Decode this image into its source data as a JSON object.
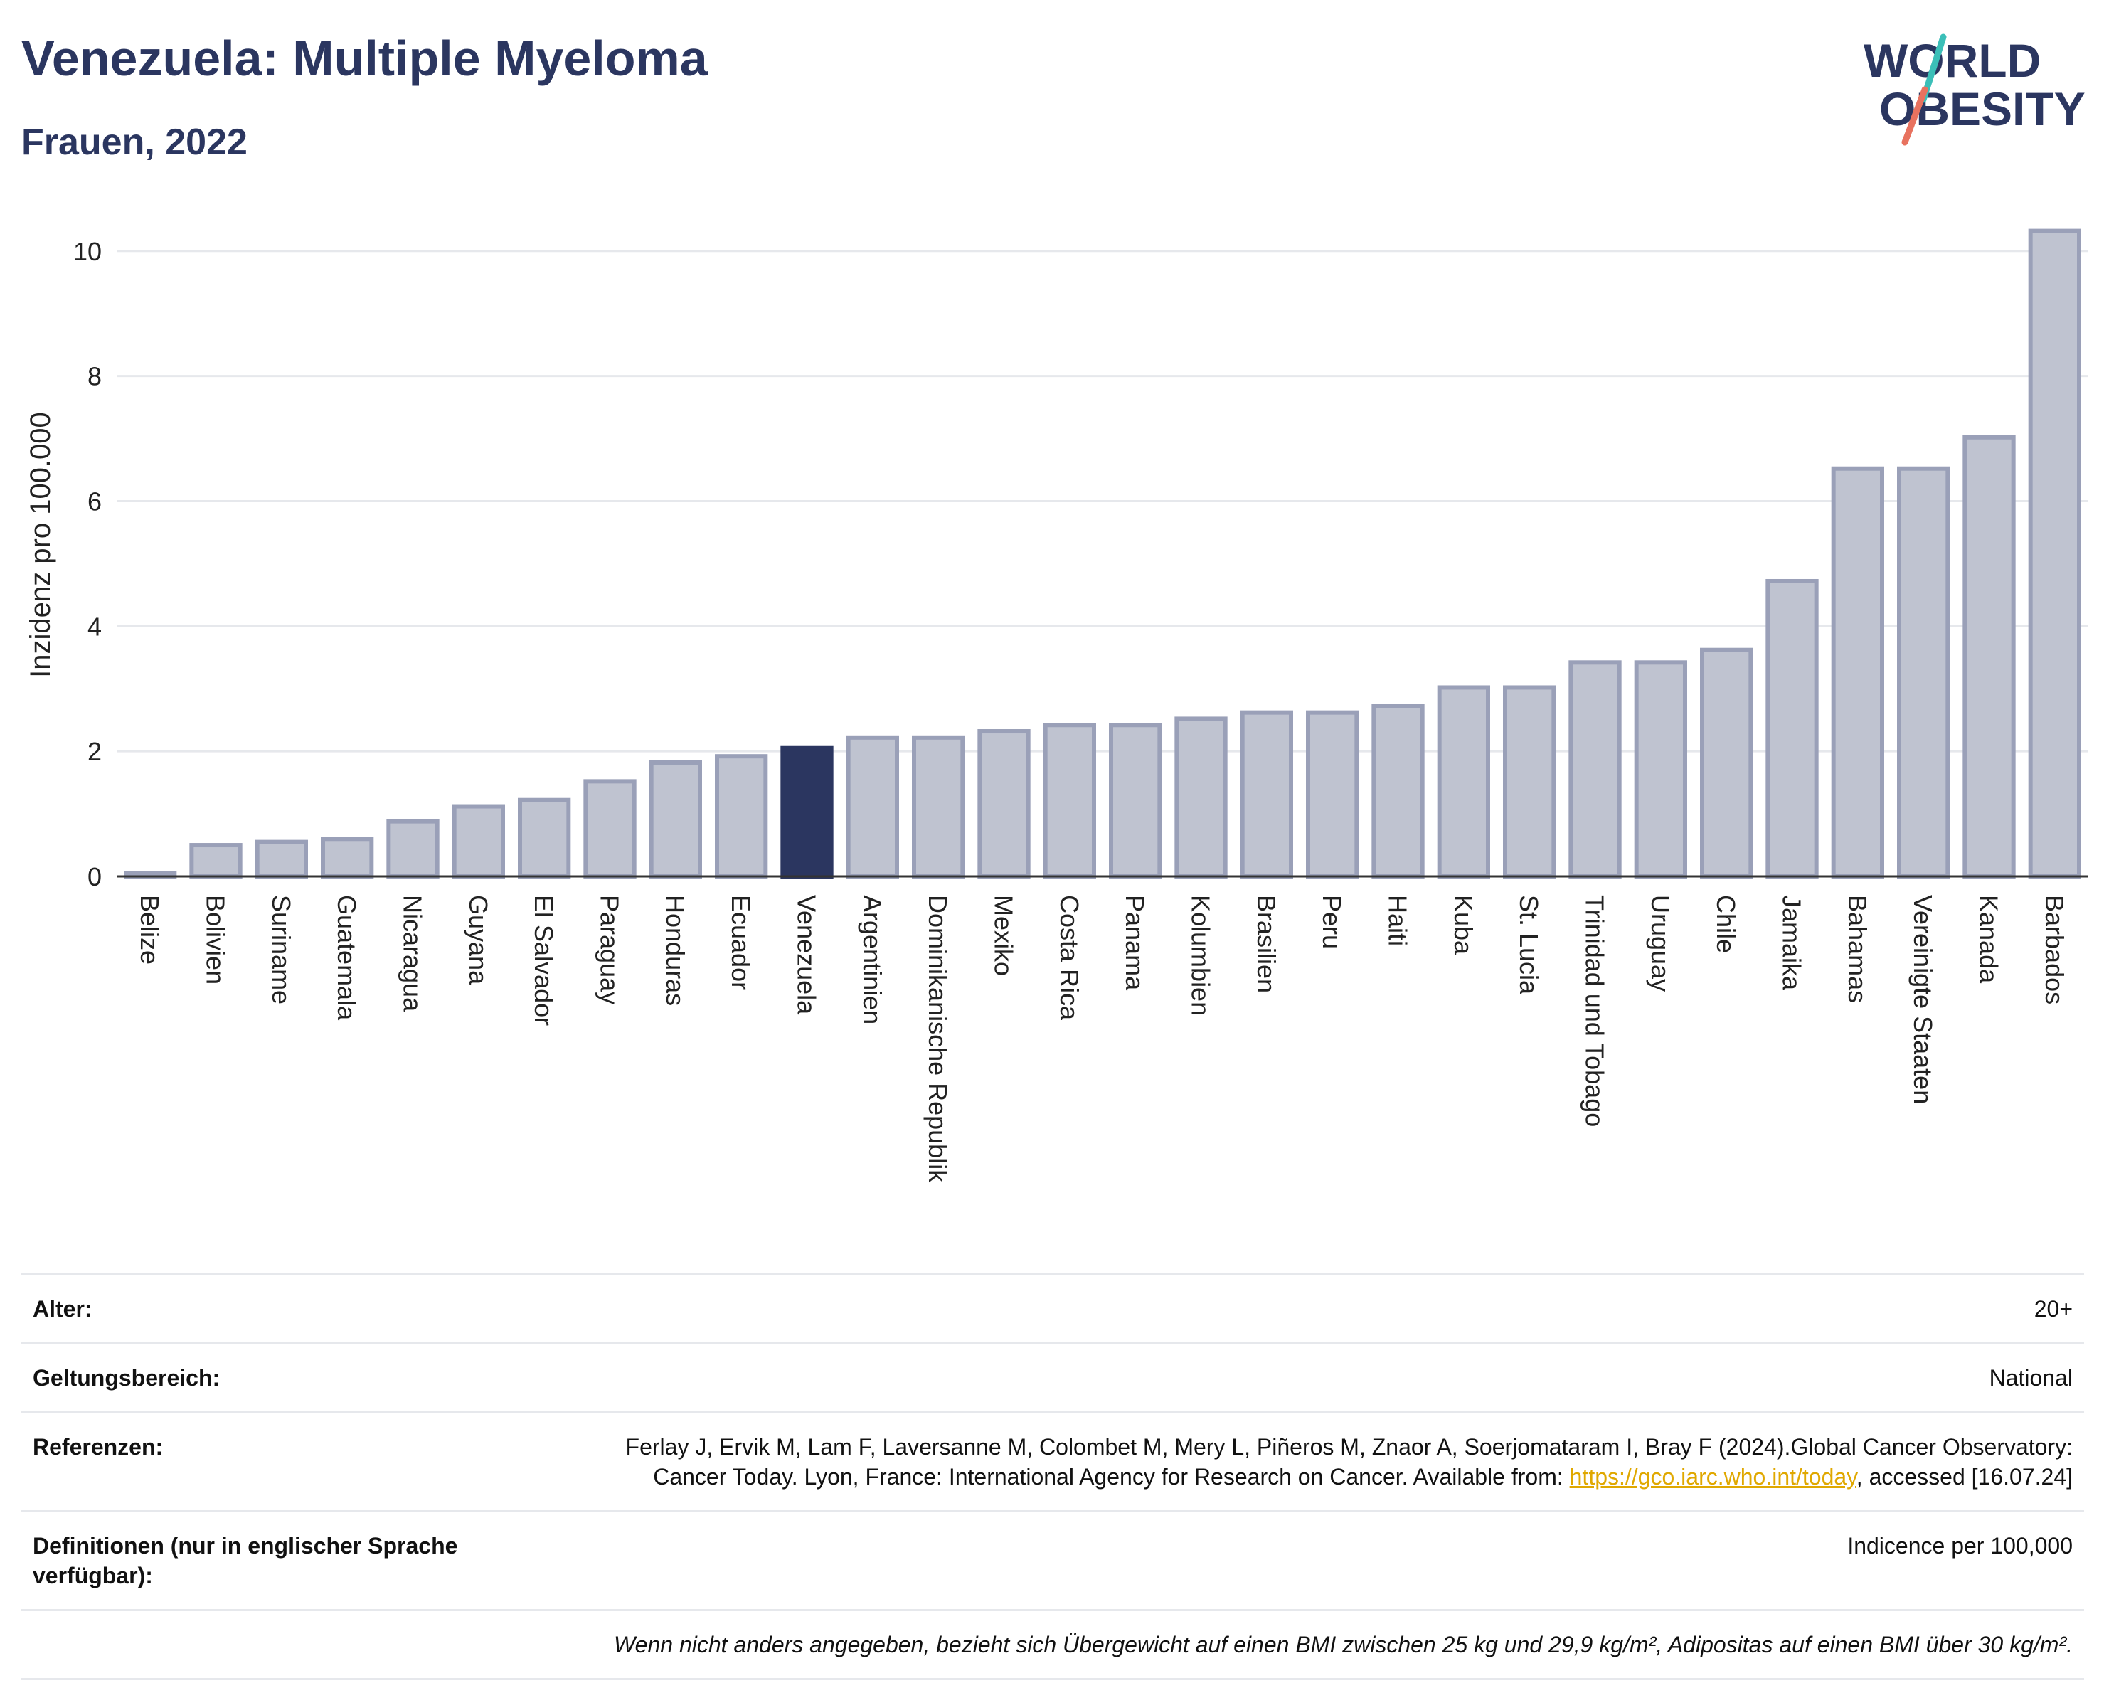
{
  "header": {
    "title": "Venezuela: Multiple Myeloma",
    "subtitle": "Frauen, 2022"
  },
  "logo": {
    "line1": "WORLD",
    "line2": "OBESITY"
  },
  "chart_data": {
    "type": "bar",
    "ylabel": "Inzidenz pro 100.000",
    "xlabel": "",
    "ylim": [
      0,
      10.6
    ],
    "yticks": [
      0,
      2,
      4,
      6,
      8,
      10
    ],
    "grid": true,
    "highlight": "Venezuela",
    "colors": {
      "bar": "#bfc3d0",
      "bar_border": "#9aa0b8",
      "highlight": "#2b3660",
      "grid": "#e6e8ec"
    },
    "categories": [
      "Belize",
      "Bolivien",
      "Suriname",
      "Guatemala",
      "Nicaragua",
      "Guyana",
      "El Salvador",
      "Paraguay",
      "Honduras",
      "Ecuador",
      "Venezuela",
      "Argentinien",
      "Dominikanische Republik",
      "Mexiko",
      "Costa Rica",
      "Panama",
      "Kolumbien",
      "Brasilien",
      "Peru",
      "Haiti",
      "Kuba",
      "St. Lucia",
      "Trinidad und Tobago",
      "Uruguay",
      "Chile",
      "Jamaika",
      "Bahamas",
      "Vereinigte Staaten",
      "Kanada",
      "Barbados"
    ],
    "values": [
      0.05,
      0.5,
      0.55,
      0.6,
      0.88,
      1.12,
      1.22,
      1.52,
      1.82,
      1.92,
      2.05,
      2.22,
      2.22,
      2.32,
      2.42,
      2.42,
      2.52,
      2.62,
      2.62,
      2.72,
      3.02,
      3.02,
      3.42,
      3.42,
      3.62,
      4.72,
      6.52,
      6.52,
      7.02,
      10.32
    ]
  },
  "meta": {
    "age_label": "Alter:",
    "age_value": "20+",
    "scope_label": "Geltungsbereich:",
    "scope_value": "National",
    "refs_label": "Referenzen:",
    "refs_text_1": "Ferlay J, Ervik M, Lam F, Laversanne M, Colombet M, Mery L, Piñeros M, Znaor A, Soerjomataram I, Bray F (2024).Global Cancer Observatory: Cancer Today. Lyon, France: International Agency for Research on Cancer. Available from: ",
    "refs_link": "https://gco.iarc.who.int/today",
    "refs_text_2": ", accessed [16.07.24]",
    "defs_label": "Definitionen (nur in englischer Sprache verfügbar):",
    "defs_value": "Indicence per 100,000",
    "note": "Wenn nicht anders angegeben, bezieht sich Übergewicht auf einen BMI zwischen 25 kg und 29,9 kg/m², Adipositas auf einen BMI über 30 kg/m²."
  }
}
